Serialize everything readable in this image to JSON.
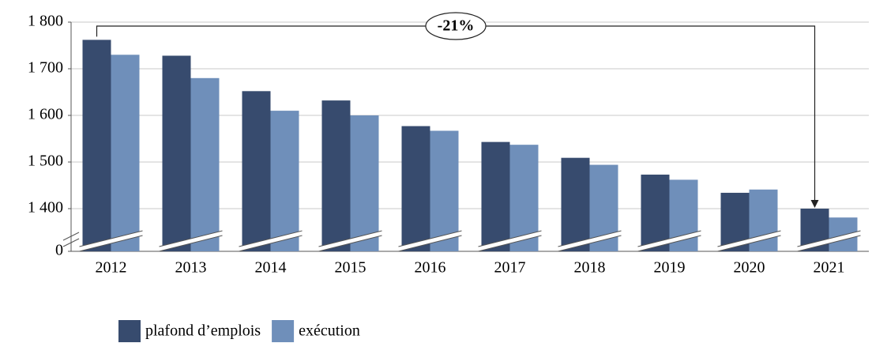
{
  "chart_data": {
    "type": "bar",
    "categories": [
      "2012",
      "2013",
      "2014",
      "2015",
      "2016",
      "2017",
      "2018",
      "2019",
      "2020",
      "2021"
    ],
    "series": [
      {
        "name": "plafond d’emplois",
        "color": "#374b6e",
        "values": [
          1762,
          1728,
          1652,
          1632,
          1577,
          1543,
          1509,
          1473,
          1434,
          1400
        ]
      },
      {
        "name": "exécution",
        "color": "#6f8fba",
        "values": [
          1730,
          1680,
          1610,
          1600,
          1567,
          1537,
          1494,
          1462,
          1441,
          1381
        ]
      }
    ],
    "ylim": [
      0,
      1800
    ],
    "yticks": [
      0,
      {
        "value": 1400,
        "label": "1 400"
      },
      {
        "value": 1500,
        "label": "1 500"
      },
      {
        "value": 1600,
        "label": "1 600"
      },
      {
        "value": 1700,
        "label": "1 700"
      },
      {
        "value": 1800,
        "label": "1 800"
      }
    ],
    "broken_axis": true,
    "grid": true,
    "legend": "bottom",
    "annotation": "-21%"
  }
}
